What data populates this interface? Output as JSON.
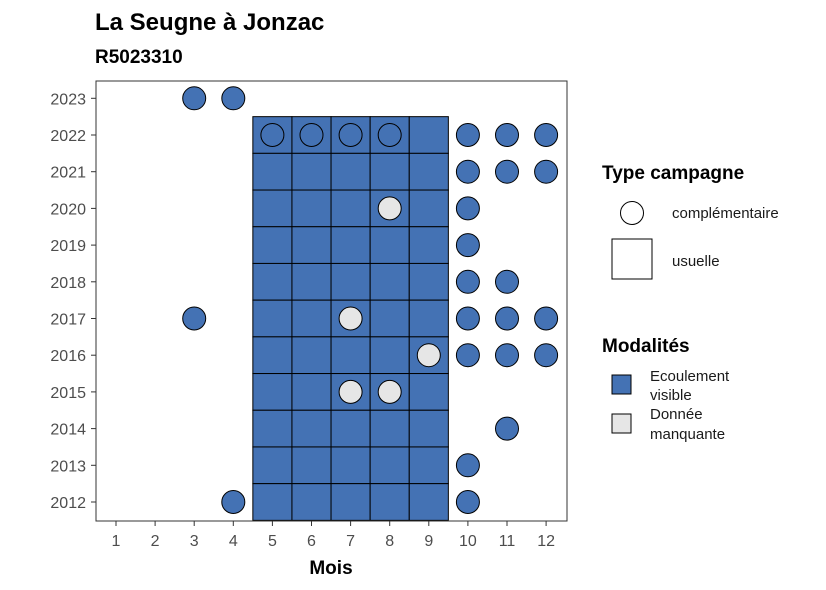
{
  "chart_data": {
    "type": "heatmap",
    "title": "La Seugne à Jonzac",
    "subtitle": "R5023310",
    "xlabel": "Mois",
    "ylabel": "",
    "x_categories": [
      1,
      2,
      3,
      4,
      5,
      6,
      7,
      8,
      9,
      10,
      11,
      12
    ],
    "y_categories": [
      2012,
      2013,
      2014,
      2015,
      2016,
      2017,
      2018,
      2019,
      2020,
      2021,
      2022,
      2023
    ],
    "grid": false,
    "legend_position": "right",
    "colors": {
      "Ecoulement visible": "#4472b4",
      "Donnée manquante": "#e6e6e6"
    },
    "legend": {
      "type_title": "Type campagne",
      "type_items": [
        {
          "label": "complémentaire",
          "shape": "circle"
        },
        {
          "label": "usuelle",
          "shape": "square"
        }
      ],
      "modal_title": "Modalités",
      "modal_items": [
        {
          "label_lines": [
            "Ecoulement",
            "visible"
          ],
          "value": "Ecoulement visible"
        },
        {
          "label_lines": [
            "Donnée",
            "manquante"
          ],
          "value": "Donnée manquante"
        }
      ]
    },
    "observations": [
      {
        "year": 2023,
        "month": 3,
        "type": "complémentaire",
        "modalite": "Ecoulement visible"
      },
      {
        "year": 2023,
        "month": 4,
        "type": "complémentaire",
        "modalite": "Ecoulement visible"
      },
      {
        "year": 2022,
        "month": 5,
        "type": "usuelle",
        "modalite": "Ecoulement visible"
      },
      {
        "year": 2022,
        "month": 5,
        "type": "complémentaire",
        "modalite": "Ecoulement visible"
      },
      {
        "year": 2022,
        "month": 6,
        "type": "usuelle",
        "modalite": "Ecoulement visible"
      },
      {
        "year": 2022,
        "month": 6,
        "type": "complémentaire",
        "modalite": "Ecoulement visible"
      },
      {
        "year": 2022,
        "month": 7,
        "type": "usuelle",
        "modalite": "Ecoulement visible"
      },
      {
        "year": 2022,
        "month": 7,
        "type": "complémentaire",
        "modalite": "Ecoulement visible"
      },
      {
        "year": 2022,
        "month": 8,
        "type": "usuelle",
        "modalite": "Ecoulement visible"
      },
      {
        "year": 2022,
        "month": 8,
        "type": "complémentaire",
        "modalite": "Ecoulement visible"
      },
      {
        "year": 2022,
        "month": 9,
        "type": "usuelle",
        "modalite": "Ecoulement visible"
      },
      {
        "year": 2022,
        "month": 10,
        "type": "complémentaire",
        "modalite": "Ecoulement visible"
      },
      {
        "year": 2022,
        "month": 11,
        "type": "complémentaire",
        "modalite": "Ecoulement visible"
      },
      {
        "year": 2022,
        "month": 12,
        "type": "complémentaire",
        "modalite": "Ecoulement visible"
      },
      {
        "year": 2021,
        "month": 5,
        "type": "usuelle",
        "modalite": "Ecoulement visible"
      },
      {
        "year": 2021,
        "month": 6,
        "type": "usuelle",
        "modalite": "Ecoulement visible"
      },
      {
        "year": 2021,
        "month": 7,
        "type": "usuelle",
        "modalite": "Ecoulement visible"
      },
      {
        "year": 2021,
        "month": 8,
        "type": "usuelle",
        "modalite": "Ecoulement visible"
      },
      {
        "year": 2021,
        "month": 9,
        "type": "usuelle",
        "modalite": "Ecoulement visible"
      },
      {
        "year": 2021,
        "month": 10,
        "type": "complémentaire",
        "modalite": "Ecoulement visible"
      },
      {
        "year": 2021,
        "month": 11,
        "type": "complémentaire",
        "modalite": "Ecoulement visible"
      },
      {
        "year": 2021,
        "month": 12,
        "type": "complémentaire",
        "modalite": "Ecoulement visible"
      },
      {
        "year": 2020,
        "month": 5,
        "type": "usuelle",
        "modalite": "Ecoulement visible"
      },
      {
        "year": 2020,
        "month": 6,
        "type": "usuelle",
        "modalite": "Ecoulement visible"
      },
      {
        "year": 2020,
        "month": 7,
        "type": "usuelle",
        "modalite": "Ecoulement visible"
      },
      {
        "year": 2020,
        "month": 8,
        "type": "usuelle",
        "modalite": "Ecoulement visible"
      },
      {
        "year": 2020,
        "month": 8,
        "type": "complémentaire",
        "modalite": "Donnée manquante"
      },
      {
        "year": 2020,
        "month": 9,
        "type": "usuelle",
        "modalite": "Ecoulement visible"
      },
      {
        "year": 2020,
        "month": 10,
        "type": "complémentaire",
        "modalite": "Ecoulement visible"
      },
      {
        "year": 2019,
        "month": 5,
        "type": "usuelle",
        "modalite": "Ecoulement visible"
      },
      {
        "year": 2019,
        "month": 6,
        "type": "usuelle",
        "modalite": "Ecoulement visible"
      },
      {
        "year": 2019,
        "month": 7,
        "type": "usuelle",
        "modalite": "Ecoulement visible"
      },
      {
        "year": 2019,
        "month": 8,
        "type": "usuelle",
        "modalite": "Ecoulement visible"
      },
      {
        "year": 2019,
        "month": 9,
        "type": "usuelle",
        "modalite": "Ecoulement visible"
      },
      {
        "year": 2019,
        "month": 10,
        "type": "complémentaire",
        "modalite": "Ecoulement visible"
      },
      {
        "year": 2018,
        "month": 5,
        "type": "usuelle",
        "modalite": "Ecoulement visible"
      },
      {
        "year": 2018,
        "month": 6,
        "type": "usuelle",
        "modalite": "Ecoulement visible"
      },
      {
        "year": 2018,
        "month": 7,
        "type": "usuelle",
        "modalite": "Ecoulement visible"
      },
      {
        "year": 2018,
        "month": 8,
        "type": "usuelle",
        "modalite": "Ecoulement visible"
      },
      {
        "year": 2018,
        "month": 9,
        "type": "usuelle",
        "modalite": "Ecoulement visible"
      },
      {
        "year": 2018,
        "month": 10,
        "type": "complémentaire",
        "modalite": "Ecoulement visible"
      },
      {
        "year": 2018,
        "month": 11,
        "type": "complémentaire",
        "modalite": "Ecoulement visible"
      },
      {
        "year": 2017,
        "month": 3,
        "type": "complémentaire",
        "modalite": "Ecoulement visible"
      },
      {
        "year": 2017,
        "month": 5,
        "type": "usuelle",
        "modalite": "Ecoulement visible"
      },
      {
        "year": 2017,
        "month": 6,
        "type": "usuelle",
        "modalite": "Ecoulement visible"
      },
      {
        "year": 2017,
        "month": 7,
        "type": "usuelle",
        "modalite": "Ecoulement visible"
      },
      {
        "year": 2017,
        "month": 7,
        "type": "complémentaire",
        "modalite": "Donnée manquante"
      },
      {
        "year": 2017,
        "month": 8,
        "type": "usuelle",
        "modalite": "Ecoulement visible"
      },
      {
        "year": 2017,
        "month": 9,
        "type": "usuelle",
        "modalite": "Ecoulement visible"
      },
      {
        "year": 2017,
        "month": 10,
        "type": "complémentaire",
        "modalite": "Ecoulement visible"
      },
      {
        "year": 2017,
        "month": 11,
        "type": "complémentaire",
        "modalite": "Ecoulement visible"
      },
      {
        "year": 2017,
        "month": 12,
        "type": "complémentaire",
        "modalite": "Ecoulement visible"
      },
      {
        "year": 2016,
        "month": 5,
        "type": "usuelle",
        "modalite": "Ecoulement visible"
      },
      {
        "year": 2016,
        "month": 6,
        "type": "usuelle",
        "modalite": "Ecoulement visible"
      },
      {
        "year": 2016,
        "month": 7,
        "type": "usuelle",
        "modalite": "Ecoulement visible"
      },
      {
        "year": 2016,
        "month": 8,
        "type": "usuelle",
        "modalite": "Ecoulement visible"
      },
      {
        "year": 2016,
        "month": 9,
        "type": "usuelle",
        "modalite": "Ecoulement visible"
      },
      {
        "year": 2016,
        "month": 9,
        "type": "complémentaire",
        "modalite": "Donnée manquante"
      },
      {
        "year": 2016,
        "month": 10,
        "type": "complémentaire",
        "modalite": "Ecoulement visible"
      },
      {
        "year": 2016,
        "month": 11,
        "type": "complémentaire",
        "modalite": "Ecoulement visible"
      },
      {
        "year": 2016,
        "month": 12,
        "type": "complémentaire",
        "modalite": "Ecoulement visible"
      },
      {
        "year": 2015,
        "month": 5,
        "type": "usuelle",
        "modalite": "Ecoulement visible"
      },
      {
        "year": 2015,
        "month": 6,
        "type": "usuelle",
        "modalite": "Ecoulement visible"
      },
      {
        "year": 2015,
        "month": 7,
        "type": "usuelle",
        "modalite": "Ecoulement visible"
      },
      {
        "year": 2015,
        "month": 7,
        "type": "complémentaire",
        "modalite": "Donnée manquante"
      },
      {
        "year": 2015,
        "month": 8,
        "type": "usuelle",
        "modalite": "Ecoulement visible"
      },
      {
        "year": 2015,
        "month": 8,
        "type": "complémentaire",
        "modalite": "Donnée manquante"
      },
      {
        "year": 2015,
        "month": 9,
        "type": "usuelle",
        "modalite": "Ecoulement visible"
      },
      {
        "year": 2014,
        "month": 5,
        "type": "usuelle",
        "modalite": "Ecoulement visible"
      },
      {
        "year": 2014,
        "month": 6,
        "type": "usuelle",
        "modalite": "Ecoulement visible"
      },
      {
        "year": 2014,
        "month": 7,
        "type": "usuelle",
        "modalite": "Ecoulement visible"
      },
      {
        "year": 2014,
        "month": 8,
        "type": "usuelle",
        "modalite": "Ecoulement visible"
      },
      {
        "year": 2014,
        "month": 9,
        "type": "usuelle",
        "modalite": "Ecoulement visible"
      },
      {
        "year": 2014,
        "month": 11,
        "type": "complémentaire",
        "modalite": "Ecoulement visible"
      },
      {
        "year": 2013,
        "month": 5,
        "type": "usuelle",
        "modalite": "Ecoulement visible"
      },
      {
        "year": 2013,
        "month": 6,
        "type": "usuelle",
        "modalite": "Ecoulement visible"
      },
      {
        "year": 2013,
        "month": 7,
        "type": "usuelle",
        "modalite": "Ecoulement visible"
      },
      {
        "year": 2013,
        "month": 8,
        "type": "usuelle",
        "modalite": "Ecoulement visible"
      },
      {
        "year": 2013,
        "month": 9,
        "type": "usuelle",
        "modalite": "Ecoulement visible"
      },
      {
        "year": 2013,
        "month": 10,
        "type": "complémentaire",
        "modalite": "Ecoulement visible"
      },
      {
        "year": 2012,
        "month": 4,
        "type": "complémentaire",
        "modalite": "Ecoulement visible"
      },
      {
        "year": 2012,
        "month": 5,
        "type": "usuelle",
        "modalite": "Ecoulement visible"
      },
      {
        "year": 2012,
        "month": 6,
        "type": "usuelle",
        "modalite": "Ecoulement visible"
      },
      {
        "year": 2012,
        "month": 7,
        "type": "usuelle",
        "modalite": "Ecoulement visible"
      },
      {
        "year": 2012,
        "month": 8,
        "type": "usuelle",
        "modalite": "Ecoulement visible"
      },
      {
        "year": 2012,
        "month": 9,
        "type": "usuelle",
        "modalite": "Ecoulement visible"
      },
      {
        "year": 2012,
        "month": 10,
        "type": "complémentaire",
        "modalite": "Ecoulement visible"
      }
    ]
  }
}
